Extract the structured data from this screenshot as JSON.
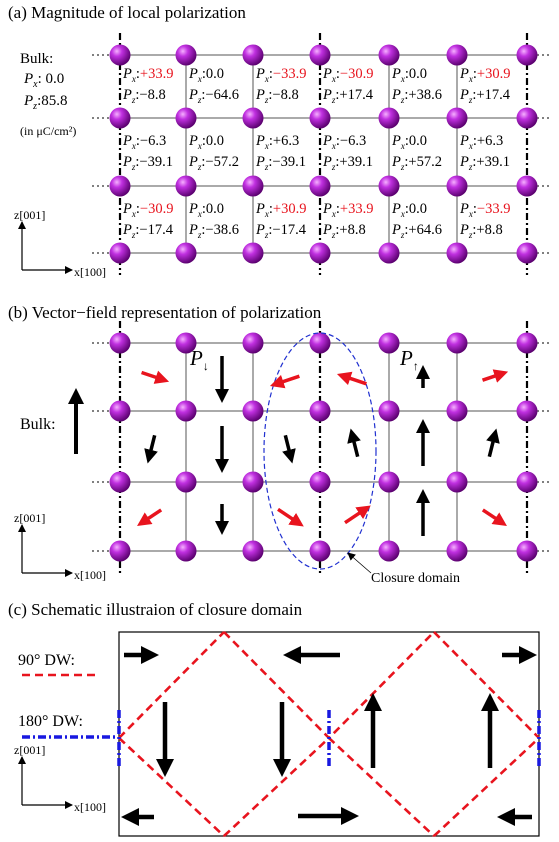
{
  "panel_a": {
    "title": "(a) Magnitude of local polarization",
    "bulk_label": "Bulk:",
    "bulk_px": "0.0",
    "bulk_pz": "85.8",
    "units": "(in μC/cm²)",
    "axis_z": "z[001]",
    "axis_x": "x[100]",
    "rows": [
      [
        {
          "px": "+33.9",
          "px_red": true,
          "pz": "−8.8"
        },
        {
          "px": "0.0",
          "px_red": false,
          "pz": "−64.6"
        },
        {
          "px": "−33.9",
          "px_red": true,
          "pz": "−8.8"
        },
        {
          "px": "−30.9",
          "px_red": true,
          "pz": "+17.4"
        },
        {
          "px": "0.0",
          "px_red": false,
          "pz": "+38.6"
        },
        {
          "px": "+30.9",
          "px_red": true,
          "pz": "+17.4"
        }
      ],
      [
        {
          "px": "−6.3",
          "px_red": false,
          "pz": "−39.1"
        },
        {
          "px": "0.0",
          "px_red": false,
          "pz": "−57.2"
        },
        {
          "px": "+6.3",
          "px_red": false,
          "pz": "−39.1"
        },
        {
          "px": "−6.3",
          "px_red": false,
          "pz": "+39.1"
        },
        {
          "px": "0.0",
          "px_red": false,
          "pz": "+57.2"
        },
        {
          "px": "+6.3",
          "px_red": false,
          "pz": "+39.1"
        }
      ],
      [
        {
          "px": "−30.9",
          "px_red": true,
          "pz": "−17.4"
        },
        {
          "px": "0.0",
          "px_red": false,
          "pz": "−38.6"
        },
        {
          "px": "+30.9",
          "px_red": true,
          "pz": "−17.4"
        },
        {
          "px": "+33.9",
          "px_red": true,
          "pz": "+8.8"
        },
        {
          "px": "0.0",
          "px_red": false,
          "pz": "+64.6"
        },
        {
          "px": "−33.9",
          "px_red": true,
          "pz": "+8.8"
        }
      ]
    ]
  },
  "panel_b": {
    "title": "(b) Vector−field representation of polarization",
    "bulk_label": "Bulk:",
    "p_down": "P",
    "p_up": "P",
    "axis_z": "z[001]",
    "axis_x": "x[100]",
    "annotation": "Closure domain"
  },
  "panel_c": {
    "title": "(c) Schematic illustraion of closure domain",
    "dw90": "90° DW:",
    "dw180": "180° DW:",
    "axis_z": "z[001]",
    "axis_x": "x[100]"
  },
  "colors": {
    "atom": "#a020c0",
    "red_arrow": "#e8141e",
    "red_text": "#e8141e",
    "dw90": "#e8141e",
    "dw180": "#1818e0",
    "ellipse": "#2030d0"
  }
}
